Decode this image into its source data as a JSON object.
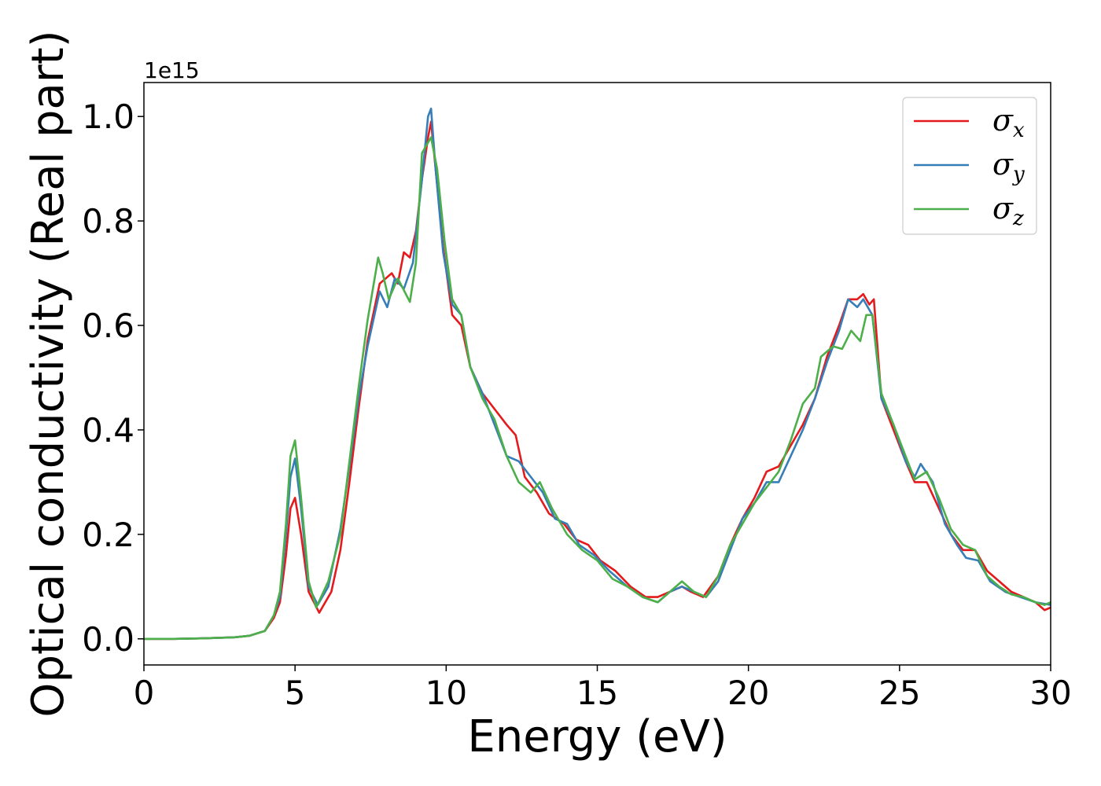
{
  "chart_data": {
    "type": "line",
    "xlabel": "Energy (eV)",
    "ylabel": "Optical conductivity (Real part)",
    "y_offset_label": "1e15",
    "xlim": [
      0,
      30
    ],
    "ylim": [
      -0.05,
      1.065
    ],
    "x_ticks": [
      0,
      5,
      10,
      15,
      20,
      25,
      30
    ],
    "x_tick_labels": [
      "0",
      "5",
      "10",
      "15",
      "20",
      "25",
      "30"
    ],
    "y_ticks": [
      0.0,
      0.2,
      0.4,
      0.6,
      0.8,
      1.0
    ],
    "y_tick_labels": [
      "0.0",
      "0.2",
      "0.4",
      "0.6",
      "0.8",
      "1.0"
    ],
    "grid": false,
    "legend_position": "top-right",
    "series": [
      {
        "name": "σx",
        "legend_symbol": "σ",
        "legend_subscript": "x",
        "color": "#e41a1c",
        "points": [
          [
            0,
            0
          ],
          [
            1,
            0.0
          ],
          [
            2,
            0.001
          ],
          [
            3,
            0.003
          ],
          [
            3.5,
            0.006
          ],
          [
            4,
            0.015
          ],
          [
            4.3,
            0.04
          ],
          [
            4.5,
            0.07
          ],
          [
            4.7,
            0.16
          ],
          [
            4.85,
            0.25
          ],
          [
            5,
            0.27
          ],
          [
            5.2,
            0.2
          ],
          [
            5.45,
            0.09
          ],
          [
            5.8,
            0.05
          ],
          [
            6.2,
            0.09
          ],
          [
            6.5,
            0.17
          ],
          [
            6.8,
            0.3
          ],
          [
            7.1,
            0.44
          ],
          [
            7.4,
            0.57
          ],
          [
            7.8,
            0.68
          ],
          [
            8.0,
            0.69
          ],
          [
            8.2,
            0.7
          ],
          [
            8.4,
            0.68
          ],
          [
            8.6,
            0.74
          ],
          [
            8.8,
            0.73
          ],
          [
            9.0,
            0.78
          ],
          [
            9.2,
            0.88
          ],
          [
            9.4,
            0.96
          ],
          [
            9.5,
            0.99
          ],
          [
            9.65,
            0.9
          ],
          [
            9.9,
            0.75
          ],
          [
            10.2,
            0.62
          ],
          [
            10.5,
            0.6
          ],
          [
            10.8,
            0.52
          ],
          [
            11.2,
            0.47
          ],
          [
            11.6,
            0.44
          ],
          [
            12.0,
            0.41
          ],
          [
            12.3,
            0.39
          ],
          [
            12.6,
            0.31
          ],
          [
            13.0,
            0.28
          ],
          [
            13.4,
            0.24
          ],
          [
            13.9,
            0.22
          ],
          [
            14.3,
            0.19
          ],
          [
            14.7,
            0.18
          ],
          [
            15.1,
            0.15
          ],
          [
            15.6,
            0.13
          ],
          [
            16.1,
            0.1
          ],
          [
            16.6,
            0.08
          ],
          [
            17.0,
            0.08
          ],
          [
            17.4,
            0.09
          ],
          [
            17.8,
            0.1
          ],
          [
            18.1,
            0.09
          ],
          [
            18.5,
            0.08
          ],
          [
            19.0,
            0.12
          ],
          [
            19.4,
            0.18
          ],
          [
            19.8,
            0.23
          ],
          [
            20.2,
            0.27
          ],
          [
            20.6,
            0.32
          ],
          [
            21.0,
            0.33
          ],
          [
            21.4,
            0.37
          ],
          [
            21.8,
            0.41
          ],
          [
            22.2,
            0.46
          ],
          [
            22.6,
            0.54
          ],
          [
            23.0,
            0.6
          ],
          [
            23.3,
            0.65
          ],
          [
            23.6,
            0.65
          ],
          [
            23.8,
            0.66
          ],
          [
            24.0,
            0.64
          ],
          [
            24.15,
            0.65
          ],
          [
            24.4,
            0.46
          ],
          [
            24.8,
            0.4
          ],
          [
            25.2,
            0.34
          ],
          [
            25.5,
            0.3
          ],
          [
            25.9,
            0.3
          ],
          [
            26.3,
            0.25
          ],
          [
            26.7,
            0.2
          ],
          [
            27.1,
            0.17
          ],
          [
            27.5,
            0.17
          ],
          [
            27.9,
            0.13
          ],
          [
            28.3,
            0.11
          ],
          [
            28.7,
            0.09
          ],
          [
            29.1,
            0.08
          ],
          [
            29.5,
            0.07
          ],
          [
            29.8,
            0.055
          ],
          [
            30,
            0.06
          ]
        ]
      },
      {
        "name": "σy",
        "legend_symbol": "σ",
        "legend_subscript": "y",
        "color": "#377eb8",
        "points": [
          [
            0,
            0
          ],
          [
            1,
            0.0
          ],
          [
            2,
            0.001
          ],
          [
            3,
            0.003
          ],
          [
            3.5,
            0.006
          ],
          [
            4,
            0.015
          ],
          [
            4.3,
            0.045
          ],
          [
            4.5,
            0.08
          ],
          [
            4.7,
            0.2
          ],
          [
            4.85,
            0.31
          ],
          [
            5,
            0.345
          ],
          [
            5.2,
            0.25
          ],
          [
            5.45,
            0.1
          ],
          [
            5.75,
            0.065
          ],
          [
            6.1,
            0.1
          ],
          [
            6.5,
            0.21
          ],
          [
            6.8,
            0.33
          ],
          [
            7.1,
            0.46
          ],
          [
            7.4,
            0.56
          ],
          [
            7.8,
            0.665
          ],
          [
            8.05,
            0.635
          ],
          [
            8.3,
            0.69
          ],
          [
            8.6,
            0.67
          ],
          [
            8.9,
            0.72
          ],
          [
            9.2,
            0.88
          ],
          [
            9.4,
            1.0
          ],
          [
            9.5,
            1.015
          ],
          [
            9.65,
            0.9
          ],
          [
            9.9,
            0.74
          ],
          [
            10.2,
            0.64
          ],
          [
            10.5,
            0.62
          ],
          [
            10.8,
            0.52
          ],
          [
            11.2,
            0.47
          ],
          [
            11.6,
            0.41
          ],
          [
            12.0,
            0.35
          ],
          [
            12.4,
            0.34
          ],
          [
            12.8,
            0.31
          ],
          [
            13.2,
            0.28
          ],
          [
            13.6,
            0.23
          ],
          [
            14.0,
            0.22
          ],
          [
            14.4,
            0.18
          ],
          [
            14.9,
            0.16
          ],
          [
            15.4,
            0.13
          ],
          [
            16.0,
            0.1
          ],
          [
            16.5,
            0.08
          ],
          [
            17.0,
            0.07
          ],
          [
            17.4,
            0.09
          ],
          [
            17.8,
            0.1
          ],
          [
            18.2,
            0.09
          ],
          [
            18.6,
            0.08
          ],
          [
            19.0,
            0.11
          ],
          [
            19.4,
            0.17
          ],
          [
            19.8,
            0.23
          ],
          [
            20.2,
            0.26
          ],
          [
            20.6,
            0.3
          ],
          [
            21.0,
            0.3
          ],
          [
            21.4,
            0.35
          ],
          [
            21.8,
            0.4
          ],
          [
            22.2,
            0.46
          ],
          [
            22.6,
            0.53
          ],
          [
            23.0,
            0.59
          ],
          [
            23.3,
            0.65
          ],
          [
            23.6,
            0.635
          ],
          [
            23.8,
            0.65
          ],
          [
            24.1,
            0.62
          ],
          [
            24.4,
            0.46
          ],
          [
            24.8,
            0.41
          ],
          [
            25.2,
            0.34
          ],
          [
            25.5,
            0.31
          ],
          [
            25.7,
            0.335
          ],
          [
            26.1,
            0.3
          ],
          [
            26.5,
            0.22
          ],
          [
            26.9,
            0.18
          ],
          [
            27.2,
            0.155
          ],
          [
            27.6,
            0.15
          ],
          [
            28.0,
            0.11
          ],
          [
            28.5,
            0.09
          ],
          [
            29.0,
            0.08
          ],
          [
            29.5,
            0.07
          ],
          [
            30,
            0.065
          ]
        ]
      },
      {
        "name": "σz",
        "legend_symbol": "σ",
        "legend_subscript": "z",
        "color": "#4daf4a",
        "points": [
          [
            0,
            0
          ],
          [
            1,
            0.0
          ],
          [
            2,
            0.001
          ],
          [
            3,
            0.003
          ],
          [
            3.5,
            0.006
          ],
          [
            4,
            0.015
          ],
          [
            4.3,
            0.045
          ],
          [
            4.5,
            0.09
          ],
          [
            4.7,
            0.22
          ],
          [
            4.85,
            0.35
          ],
          [
            5,
            0.38
          ],
          [
            5.2,
            0.27
          ],
          [
            5.45,
            0.11
          ],
          [
            5.7,
            0.06
          ],
          [
            6.1,
            0.11
          ],
          [
            6.5,
            0.2
          ],
          [
            6.8,
            0.34
          ],
          [
            7.1,
            0.48
          ],
          [
            7.4,
            0.61
          ],
          [
            7.75,
            0.73
          ],
          [
            7.9,
            0.7
          ],
          [
            8.1,
            0.65
          ],
          [
            8.4,
            0.69
          ],
          [
            8.8,
            0.645
          ],
          [
            9.0,
            0.72
          ],
          [
            9.2,
            0.93
          ],
          [
            9.5,
            0.96
          ],
          [
            9.7,
            0.9
          ],
          [
            9.95,
            0.76
          ],
          [
            10.2,
            0.65
          ],
          [
            10.5,
            0.62
          ],
          [
            10.8,
            0.52
          ],
          [
            11.2,
            0.46
          ],
          [
            11.6,
            0.42
          ],
          [
            12.0,
            0.35
          ],
          [
            12.4,
            0.3
          ],
          [
            12.8,
            0.28
          ],
          [
            13.1,
            0.3
          ],
          [
            13.5,
            0.25
          ],
          [
            14.0,
            0.2
          ],
          [
            14.5,
            0.17
          ],
          [
            15.0,
            0.15
          ],
          [
            15.5,
            0.115
          ],
          [
            16.0,
            0.1
          ],
          [
            16.5,
            0.08
          ],
          [
            17.0,
            0.07
          ],
          [
            17.4,
            0.09
          ],
          [
            17.8,
            0.11
          ],
          [
            18.2,
            0.09
          ],
          [
            18.6,
            0.08
          ],
          [
            19.0,
            0.12
          ],
          [
            19.4,
            0.18
          ],
          [
            19.8,
            0.22
          ],
          [
            20.2,
            0.26
          ],
          [
            20.6,
            0.29
          ],
          [
            21.0,
            0.32
          ],
          [
            21.4,
            0.38
          ],
          [
            21.8,
            0.45
          ],
          [
            22.2,
            0.48
          ],
          [
            22.4,
            0.54
          ],
          [
            22.8,
            0.56
          ],
          [
            23.1,
            0.555
          ],
          [
            23.4,
            0.59
          ],
          [
            23.7,
            0.57
          ],
          [
            23.9,
            0.62
          ],
          [
            24.1,
            0.62
          ],
          [
            24.4,
            0.47
          ],
          [
            24.8,
            0.41
          ],
          [
            25.2,
            0.35
          ],
          [
            25.5,
            0.305
          ],
          [
            25.9,
            0.32
          ],
          [
            26.3,
            0.27
          ],
          [
            26.7,
            0.21
          ],
          [
            27.1,
            0.18
          ],
          [
            27.5,
            0.17
          ],
          [
            27.9,
            0.12
          ],
          [
            28.3,
            0.1
          ],
          [
            28.7,
            0.085
          ],
          [
            29.1,
            0.08
          ],
          [
            29.5,
            0.07
          ],
          [
            29.8,
            0.065
          ],
          [
            30,
            0.07
          ]
        ]
      }
    ]
  }
}
